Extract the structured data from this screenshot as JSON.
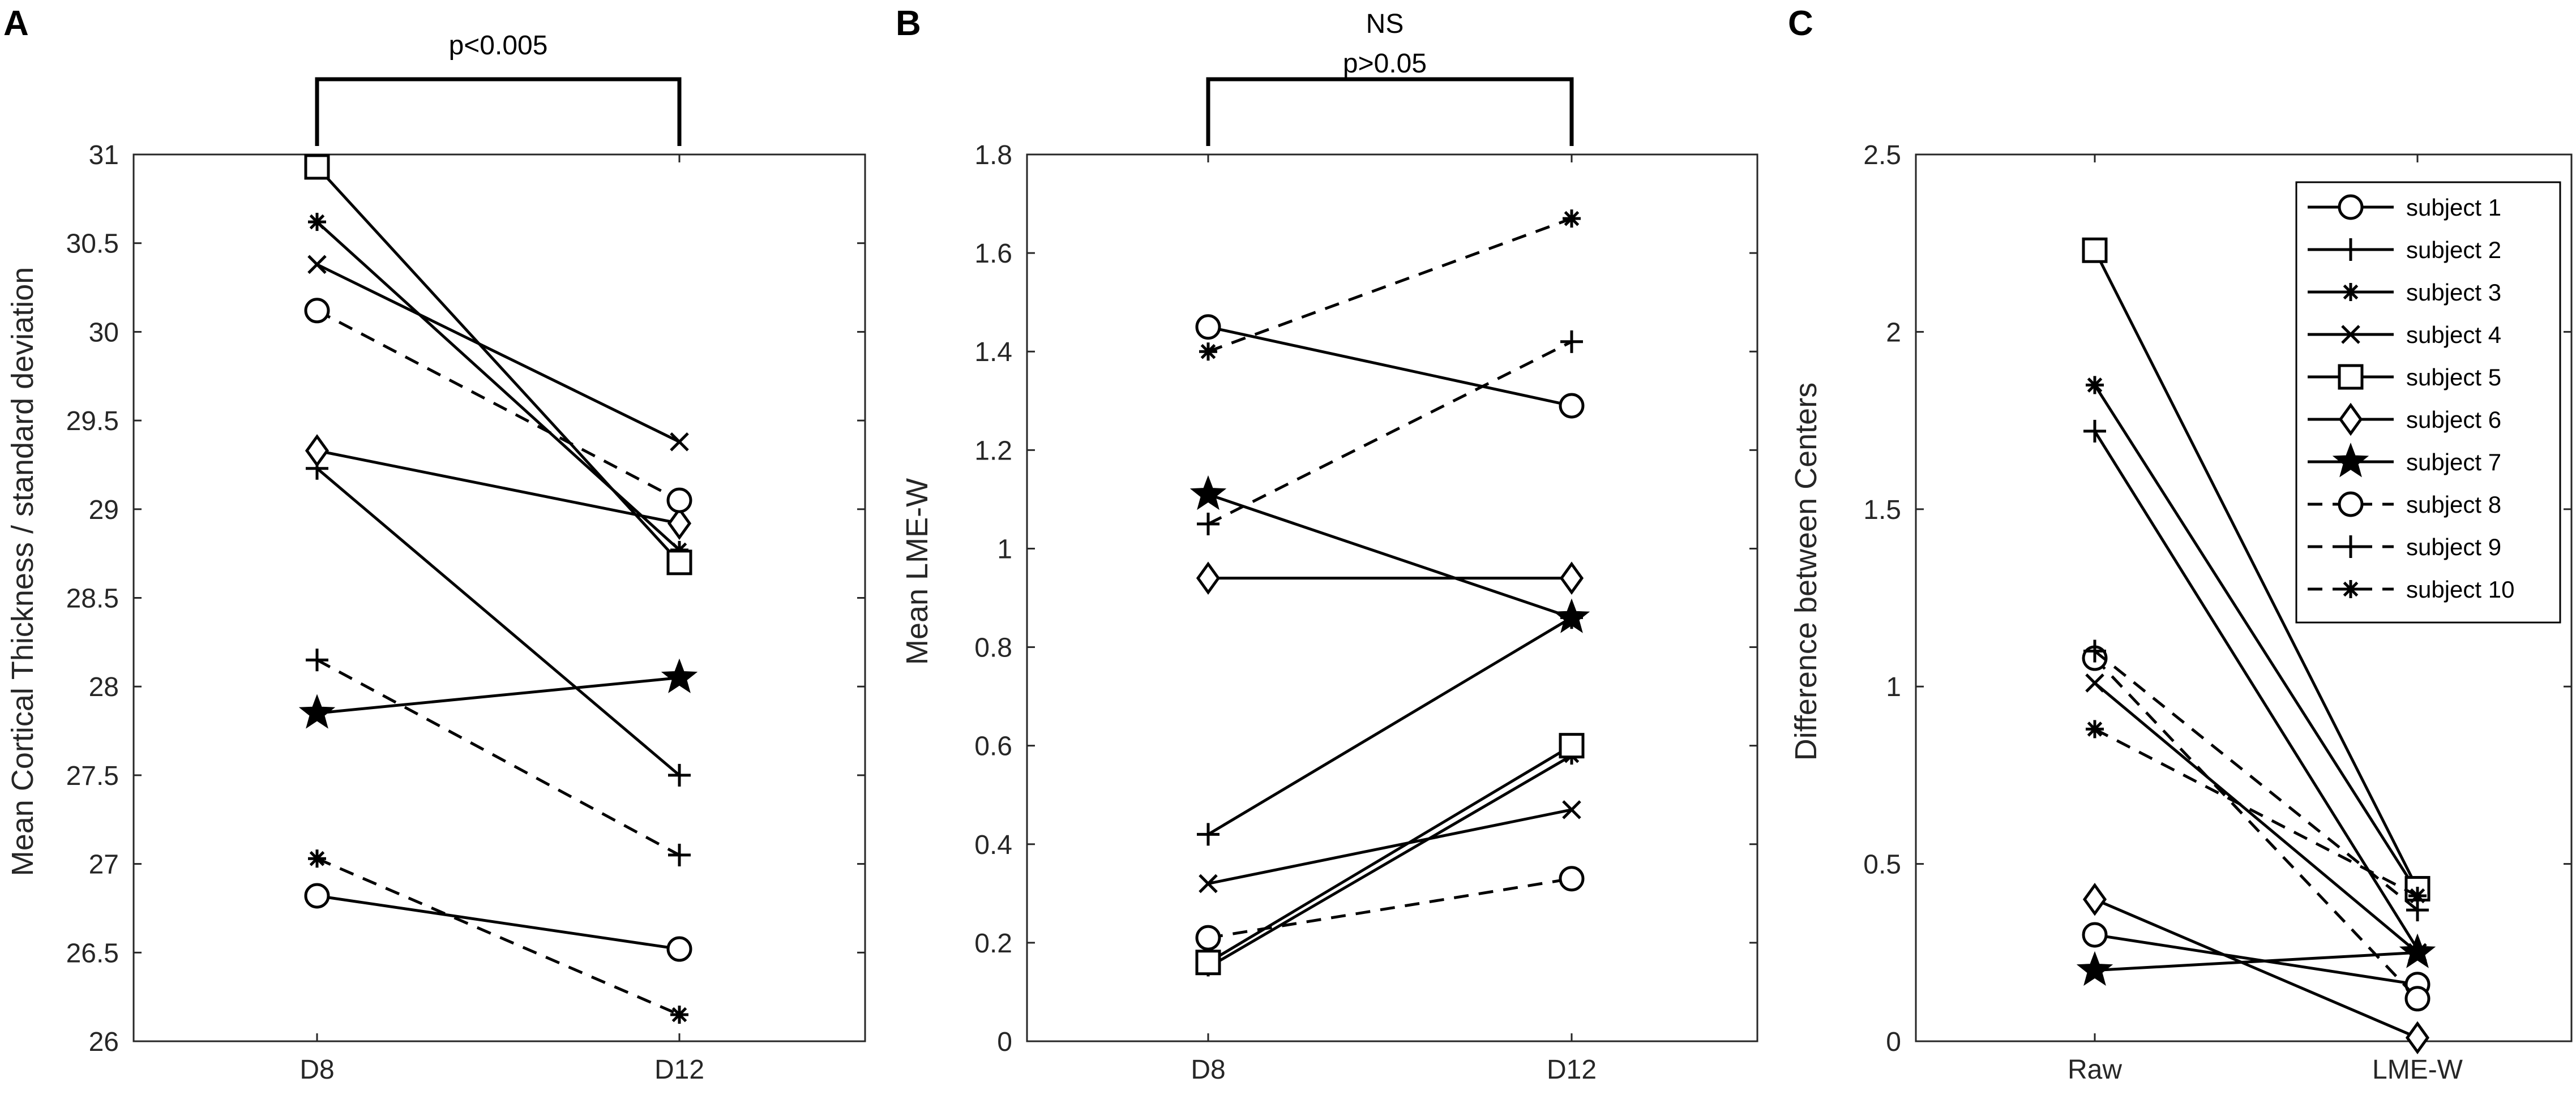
{
  "chart_data": [
    {
      "id": "A",
      "type": "line",
      "panel_letter": "A",
      "categories": [
        "D8",
        "D12"
      ],
      "ylabel": "Mean Cortical Thickness / standard deviation",
      "xlabel": "",
      "ylim": [
        26,
        31
      ],
      "yticks": [
        26,
        26.5,
        27,
        27.5,
        28,
        28.5,
        29,
        29.5,
        30,
        30.5,
        31
      ],
      "ytick_labels": [
        "26",
        "26.5",
        "27",
        "27.5",
        "28",
        "28.5",
        "29",
        "29.5",
        "30",
        "30.5",
        "31"
      ],
      "annotation": [
        "p<0.005"
      ],
      "series": [
        {
          "name": "subject 1",
          "values": [
            26.82,
            26.52
          ]
        },
        {
          "name": "subject 2",
          "values": [
            29.23,
            27.5
          ]
        },
        {
          "name": "subject 3",
          "values": [
            30.62,
            28.77
          ]
        },
        {
          "name": "subject 4",
          "values": [
            30.38,
            29.38
          ]
        },
        {
          "name": "subject 5",
          "values": [
            30.93,
            28.7
          ]
        },
        {
          "name": "subject 6",
          "values": [
            29.33,
            28.92
          ]
        },
        {
          "name": "subject 7",
          "values": [
            27.85,
            28.05
          ]
        },
        {
          "name": "subject 8",
          "values": [
            30.12,
            29.05
          ]
        },
        {
          "name": "subject 9",
          "values": [
            28.15,
            27.05
          ]
        },
        {
          "name": "subject 10",
          "values": [
            27.03,
            26.15
          ]
        }
      ]
    },
    {
      "id": "B",
      "type": "line",
      "panel_letter": "B",
      "categories": [
        "D8",
        "D12"
      ],
      "ylabel": "Mean LME-W",
      "xlabel": "",
      "ylim": [
        0,
        1.8
      ],
      "yticks": [
        0,
        0.2,
        0.4,
        0.6,
        0.8,
        1,
        1.2,
        1.4,
        1.6,
        1.8
      ],
      "ytick_labels": [
        "0",
        "0.2",
        "0.4",
        "0.6",
        "0.8",
        "1",
        "1.2",
        "1.4",
        "1.6",
        "1.8"
      ],
      "annotation": [
        "NS",
        "p>0.05"
      ],
      "series": [
        {
          "name": "subject 1",
          "values": [
            1.45,
            1.29
          ]
        },
        {
          "name": "subject 2",
          "values": [
            0.42,
            0.86
          ]
        },
        {
          "name": "subject 3",
          "values": [
            0.15,
            0.58
          ]
        },
        {
          "name": "subject 4",
          "values": [
            0.32,
            0.47
          ]
        },
        {
          "name": "subject 5",
          "values": [
            0.16,
            0.6
          ]
        },
        {
          "name": "subject 6",
          "values": [
            0.94,
            0.94
          ]
        },
        {
          "name": "subject 7",
          "values": [
            1.11,
            0.86
          ]
        },
        {
          "name": "subject 8",
          "values": [
            0.21,
            0.33
          ]
        },
        {
          "name": "subject 9",
          "values": [
            1.05,
            1.42
          ]
        },
        {
          "name": "subject 10",
          "values": [
            1.4,
            1.67
          ]
        }
      ]
    },
    {
      "id": "C",
      "type": "line",
      "panel_letter": "C",
      "categories": [
        "Raw",
        "LME-W"
      ],
      "ylabel": "Difference between Centers",
      "xlabel": "",
      "ylim": [
        0,
        2.5
      ],
      "yticks": [
        0,
        0.5,
        1,
        1.5,
        2,
        2.5
      ],
      "ytick_labels": [
        "0",
        "0.5",
        "1",
        "1.5",
        "2",
        "2.5"
      ],
      "legend_location": "top-right",
      "series": [
        {
          "name": "subject 1",
          "values": [
            0.3,
            0.16
          ]
        },
        {
          "name": "subject 2",
          "values": [
            1.72,
            0.26
          ]
        },
        {
          "name": "subject 3",
          "values": [
            1.85,
            0.42
          ]
        },
        {
          "name": "subject 4",
          "values": [
            1.01,
            0.25
          ]
        },
        {
          "name": "subject 5",
          "values": [
            2.23,
            0.43
          ]
        },
        {
          "name": "subject 6",
          "values": [
            0.4,
            0.01
          ]
        },
        {
          "name": "subject 7",
          "values": [
            0.2,
            0.25
          ]
        },
        {
          "name": "subject 8",
          "values": [
            1.08,
            0.12
          ]
        },
        {
          "name": "subject 9",
          "values": [
            1.1,
            0.37
          ]
        },
        {
          "name": "subject 10",
          "values": [
            0.88,
            0.41
          ]
        }
      ]
    }
  ],
  "legend": {
    "entries": [
      {
        "name": "subject 1",
        "marker": "circle",
        "dash": "solid"
      },
      {
        "name": "subject 2",
        "marker": "plus",
        "dash": "solid"
      },
      {
        "name": "subject 3",
        "marker": "asterisk",
        "dash": "solid"
      },
      {
        "name": "subject 4",
        "marker": "x",
        "dash": "solid"
      },
      {
        "name": "subject 5",
        "marker": "square",
        "dash": "solid"
      },
      {
        "name": "subject 6",
        "marker": "diamond",
        "dash": "solid"
      },
      {
        "name": "subject 7",
        "marker": "pentagram",
        "dash": "solid"
      },
      {
        "name": "subject 8",
        "marker": "circle",
        "dash": "dashed"
      },
      {
        "name": "subject 9",
        "marker": "plus",
        "dash": "dashed"
      },
      {
        "name": "subject 10",
        "marker": "asterisk",
        "dash": "dashed"
      }
    ]
  },
  "colors": {
    "line": "#000000",
    "axis": "#262626",
    "background": "#ffffff"
  }
}
